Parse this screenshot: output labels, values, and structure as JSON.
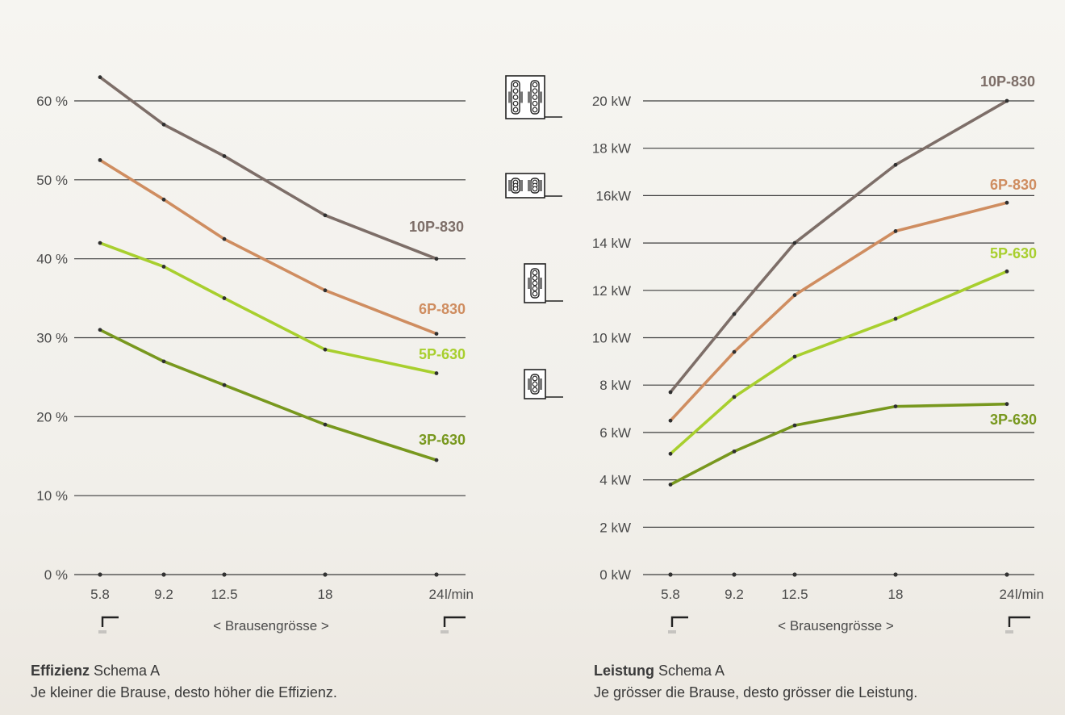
{
  "chart_data": [
    {
      "type": "line",
      "title": "",
      "x": [
        "5.8",
        "9.2",
        "12.5",
        "18",
        "24"
      ],
      "x_values": [
        5.8,
        9.2,
        12.5,
        18,
        24
      ],
      "x_unit": "l/min",
      "xlabel": "< Brausengrösse >",
      "ylabel": "",
      "yticks": [
        "0 %",
        "10 %",
        "20 %",
        "30 %",
        "40 %",
        "50 %",
        "60 %"
      ],
      "ylim": [
        0,
        60
      ],
      "grid": true,
      "series": [
        {
          "name": "10P-830",
          "color": "#7d6e68",
          "values": [
            63,
            57,
            53,
            45.5,
            40
          ]
        },
        {
          "name": "6P-830",
          "color": "#cf8d60",
          "values": [
            52.5,
            47.5,
            42.5,
            36,
            30.5
          ]
        },
        {
          "name": "5P-630",
          "color": "#a8cf2e",
          "values": [
            42,
            39,
            35,
            28.5,
            25.5
          ]
        },
        {
          "name": "3P-630",
          "color": "#78981e",
          "values": [
            31,
            27,
            24,
            19,
            14.5
          ]
        }
      ],
      "caption": {
        "bold": "Effizienz",
        "rest": "Schema A",
        "text": "Je kleiner die Brause, desto höher die Effizienz."
      }
    },
    {
      "type": "line",
      "title": "",
      "x": [
        "5.8",
        "9.2",
        "12.5",
        "18",
        "24"
      ],
      "x_values": [
        5.8,
        9.2,
        12.5,
        18,
        24
      ],
      "x_unit": "l/min",
      "xlabel": "< Brausengrösse >",
      "ylabel": "",
      "yticks": [
        "0 kW",
        "2 kW",
        "4 kW",
        "6 kW",
        "8 kW",
        "10 kW",
        "12 kW",
        "14 kW",
        "16kW",
        "18 kW",
        "20 kW"
      ],
      "ylim": [
        0,
        20
      ],
      "grid": true,
      "series": [
        {
          "name": "10P-830",
          "color": "#7d6e68",
          "values": [
            7.7,
            11,
            14,
            17.3,
            20
          ]
        },
        {
          "name": "6P-830",
          "color": "#cf8d60",
          "values": [
            6.5,
            9.4,
            11.8,
            14.5,
            15.7
          ]
        },
        {
          "name": "5P-630",
          "color": "#a8cf2e",
          "values": [
            5.1,
            7.5,
            9.2,
            10.8,
            12.8
          ]
        },
        {
          "name": "3P-630",
          "color": "#78981e",
          "values": [
            3.8,
            5.2,
            6.3,
            7.1,
            7.2
          ]
        }
      ],
      "caption": {
        "bold": "Leistung",
        "rest": "Schema A",
        "text": "Je grösser die Brause, desto grösser die Leistung."
      }
    }
  ]
}
